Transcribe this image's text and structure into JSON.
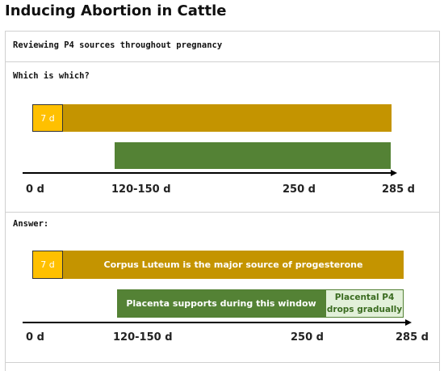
{
  "header": {
    "title": "Inducing Abortion in Cattle"
  },
  "rows": [
    {
      "text": "Reviewing P4 sources throughout pregnancy"
    },
    {
      "text": "Which is which?",
      "diagram": {
        "cl_days": "7 d",
        "axis": [
          "0 d",
          "120-150 d",
          "250 d",
          "285 d"
        ]
      }
    },
    {
      "text": "Answer:",
      "diagram": {
        "cl_days": "7 d",
        "cl_label": "Corpus Luteum is the major source of progesterone",
        "placenta_label": "Placenta supports during this window",
        "decline_label": "Placental P4 drops gradually",
        "axis": [
          "0 d",
          "120-150 d",
          "250 d",
          "285 d"
        ]
      }
    }
  ]
}
